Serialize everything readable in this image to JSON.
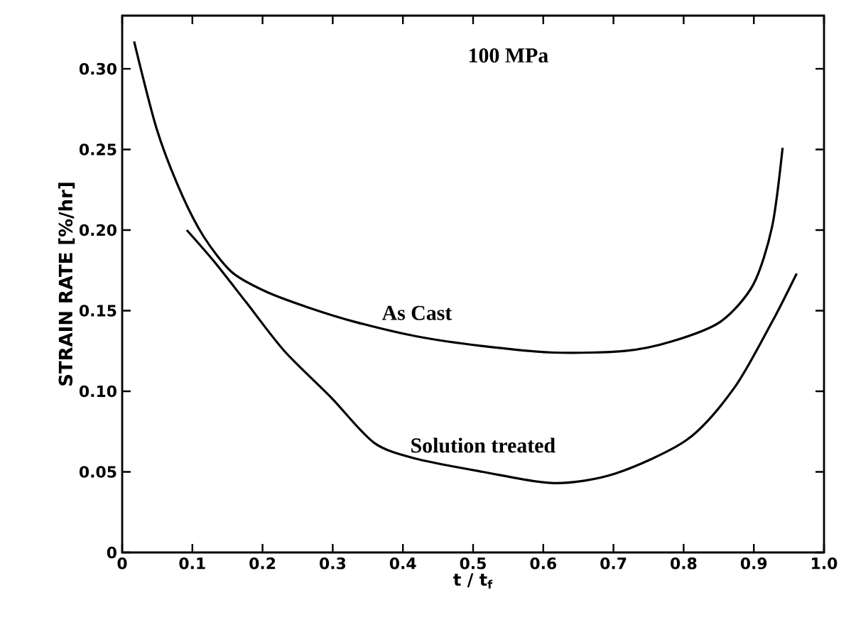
{
  "chart_data": {
    "type": "line",
    "title": "100 MPa",
    "xlabel": "t / t$_{f}$",
    "ylabel": "STRAIN RATE [%/hr]",
    "xlim": [
      0,
      1
    ],
    "ylim": [
      0,
      0.333
    ],
    "xticks": [
      0,
      0.1,
      0.2,
      0.3,
      0.4,
      0.5,
      0.6,
      0.7,
      0.8,
      0.9,
      {
        "value": 1,
        "label": "1.0"
      }
    ],
    "yticks": [
      0,
      {
        "value": 0.05,
        "label": "0.05"
      },
      {
        "value": 0.1,
        "label": "0.10"
      },
      {
        "value": 0.15,
        "label": "0.15"
      },
      {
        "value": 0.2,
        "label": "0.20"
      },
      {
        "value": 0.25,
        "label": "0.25"
      },
      {
        "value": 0.3,
        "label": "0.30"
      }
    ],
    "grid": false,
    "marker": "none",
    "line_style": "solid",
    "series": [
      {
        "name": "As Cast",
        "color": "#000000",
        "x": [
          0.017,
          0.049,
          0.082,
          0.116,
          0.156,
          0.204,
          0.265,
          0.332,
          0.42,
          0.514,
          0.615,
          0.717,
          0.784,
          0.852,
          0.899,
          0.926,
          0.941
        ],
        "values": [
          0.317,
          0.263,
          0.225,
          0.196,
          0.174,
          0.162,
          0.152,
          0.143,
          0.134,
          0.128,
          0.124,
          0.125,
          0.131,
          0.143,
          0.166,
          0.202,
          0.251
        ]
      },
      {
        "name": "Solution treated",
        "color": "#000000",
        "x": [
          0.092,
          0.13,
          0.177,
          0.231,
          0.298,
          0.359,
          0.42,
          0.514,
          0.615,
          0.703,
          0.805,
          0.872,
          0.926,
          0.961
        ],
        "values": [
          0.2,
          0.181,
          0.155,
          0.125,
          0.096,
          0.068,
          0.058,
          0.05,
          0.043,
          0.049,
          0.07,
          0.102,
          0.143,
          0.173
        ]
      }
    ]
  }
}
